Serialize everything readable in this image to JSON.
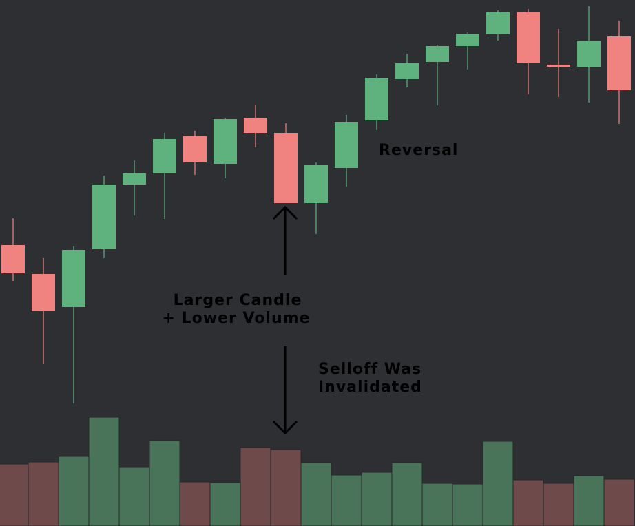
{
  "chart_data": {
    "type": "candlestick",
    "open": [
      40.8,
      36.6,
      31.8,
      40.2,
      49.6,
      51.2,
      56.6,
      52.6,
      59.3,
      57.1,
      46.9,
      52.0,
      58.9,
      64.9,
      67.4,
      69.7,
      71.4,
      74.6,
      67.0,
      66.7,
      71.1
    ],
    "high": [
      44.7,
      38.9,
      40.6,
      50.9,
      53.1,
      57.1,
      57.4,
      59.2,
      61.2,
      58.5,
      52.8,
      59.7,
      65.6,
      68.6,
      69.9,
      71.7,
      74.9,
      75.1,
      72.2,
      75.5,
      73.4
    ],
    "low": [
      35.6,
      23.6,
      17.8,
      38.9,
      45.1,
      44.6,
      51.0,
      50.5,
      55.0,
      46.9,
      42.4,
      49.3,
      57.5,
      63.7,
      61.1,
      66.3,
      70.5,
      62.7,
      62.3,
      61.5,
      58.4
    ],
    "close": [
      36.7,
      31.2,
      40.1,
      49.6,
      51.2,
      56.2,
      52.8,
      59.1,
      57.1,
      46.9,
      52.4,
      58.7,
      65.1,
      67.2,
      69.7,
      71.5,
      74.6,
      67.2,
      66.7,
      70.5,
      63.3
    ],
    "volume": [
      90,
      93,
      101,
      158,
      85,
      124,
      64,
      63,
      114,
      111,
      92,
      74,
      78,
      92,
      62,
      61,
      123,
      67,
      62,
      73,
      68
    ],
    "ylim": [
      0,
      76.4
    ],
    "y2lim": [
      0,
      764
    ],
    "up_color": "#5fb27e",
    "down_color": "#f0837f",
    "volume_up_color": "#4a7459",
    "volume_down_color": "#6e4a4a",
    "annotations": [
      "Reversal",
      "Larger Candle",
      "+ Lower Volume",
      "Selloff Was",
      "Invalidated"
    ]
  }
}
